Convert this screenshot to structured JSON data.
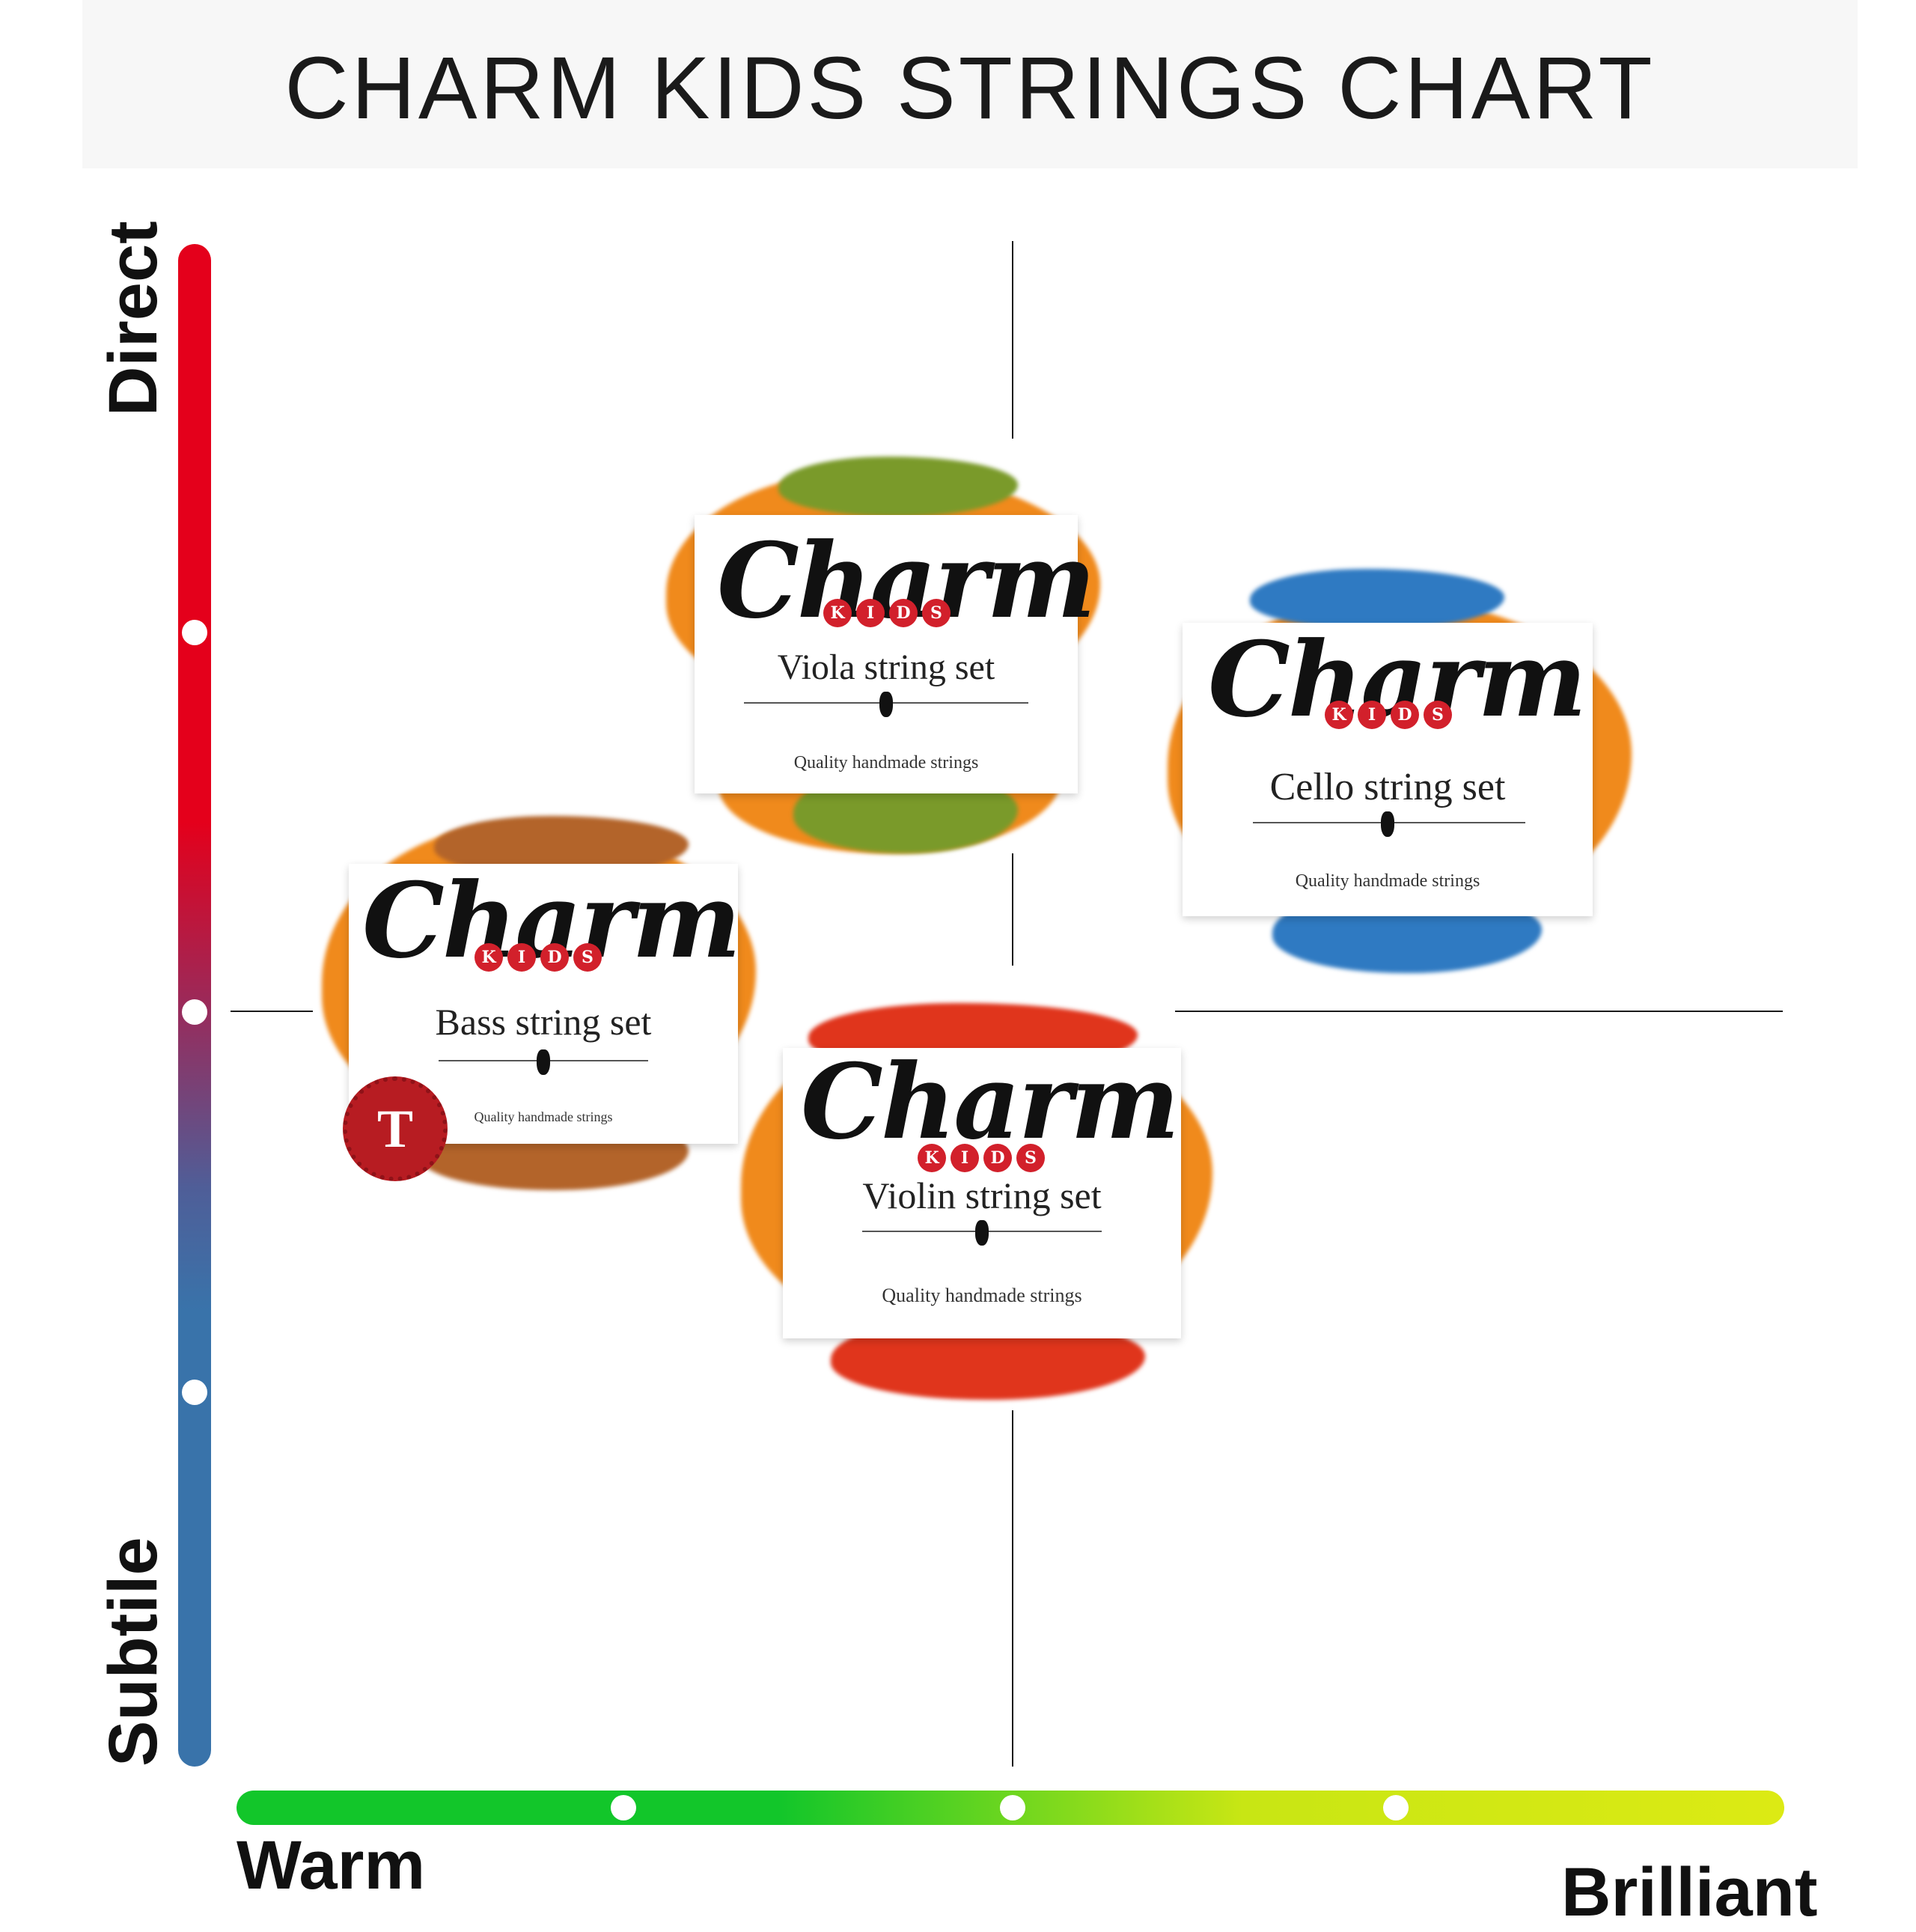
{
  "title": "CHARM KIDS STRINGS CHART",
  "axes": {
    "y_top_label": "Direct",
    "y_bottom_label": "Subtile",
    "x_left_label": "Warm",
    "x_right_label": "Brilliant",
    "y_colors": {
      "top": "#e4001b",
      "bottom": "#3973aa"
    },
    "x_colors": {
      "left": "#12c62a",
      "right": "#dcea14"
    }
  },
  "products": [
    {
      "brand": "Charm",
      "kids": [
        "K",
        "I",
        "D",
        "S"
      ],
      "name": "Viola string set",
      "tagline": "Quality handmade strings",
      "splash_colors": [
        "#f08a1c",
        "#7a9a2a"
      ]
    },
    {
      "brand": "Charm",
      "kids": [
        "K",
        "I",
        "D",
        "S"
      ],
      "name": "Cello string set",
      "tagline": "Quality handmade strings",
      "splash_colors": [
        "#f08a1c",
        "#2f7ac2"
      ]
    },
    {
      "brand": "Charm",
      "kids": [
        "K",
        "I",
        "D",
        "S"
      ],
      "name": "Bass string set",
      "tagline": "Quality handmade strings",
      "splash_colors": [
        "#f08a1c",
        "#b3642a"
      ],
      "seal": "T"
    },
    {
      "brand": "Charm",
      "kids": [
        "K",
        "I",
        "D",
        "S"
      ],
      "name": "Violin string set",
      "tagline": "Quality handmade strings",
      "splash_colors": [
        "#f08a1c",
        "#e0351c"
      ]
    }
  ],
  "chart_data": {
    "type": "scatter",
    "title": "CHARM KIDS STRINGS CHART",
    "xlabel_left": "Warm",
    "xlabel_right": "Brilliant",
    "ylabel_top": "Direct",
    "ylabel_bottom": "Subtile",
    "points": [
      {
        "name": "Viola string set",
        "x": -0.3,
        "y": 0.55
      },
      {
        "name": "Cello string set",
        "x": 0.8,
        "y": 0.45
      },
      {
        "name": "Bass string set",
        "x": -1.0,
        "y": 0.05
      },
      {
        "name": "Violin string set",
        "x": -0.05,
        "y": -0.45
      }
    ],
    "xlim": [
      -2,
      2
    ],
    "ylim": [
      -2,
      2
    ],
    "grid": false,
    "quadrant_lines": true
  }
}
